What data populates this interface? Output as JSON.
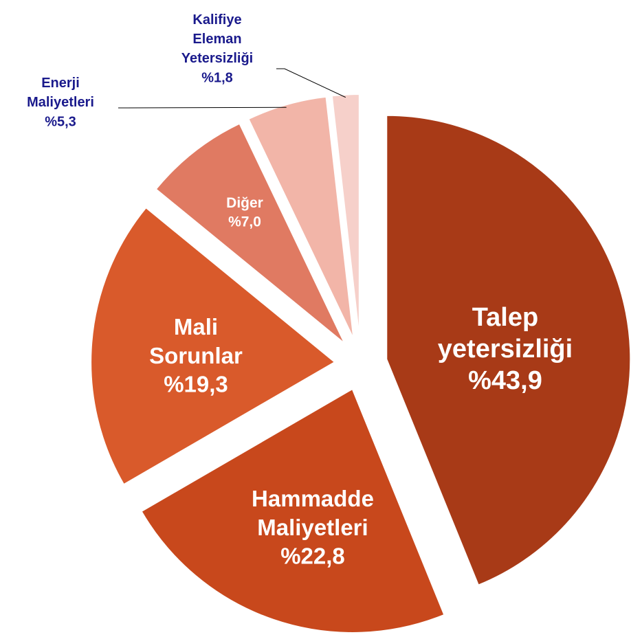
{
  "chart_data": {
    "type": "pie",
    "categories": [
      "Talep yetersizliği",
      "Hammadde Maliyetleri",
      "Mali Sorunlar",
      "Diğer",
      "Enerji Maliyetleri",
      "Kalifiye Eleman Yetersizliği"
    ],
    "values": [
      43.9,
      22.8,
      19.3,
      7.0,
      5.3,
      1.8
    ],
    "value_labels": [
      "%43,9",
      "%22,8",
      "%19,3",
      "%7,0",
      "%5,3",
      "%1,8"
    ],
    "colors": [
      "#a83a17",
      "#c8481c",
      "#d95a2b",
      "#e07a62",
      "#f2b5a8",
      "#f6d0ca"
    ]
  }
}
